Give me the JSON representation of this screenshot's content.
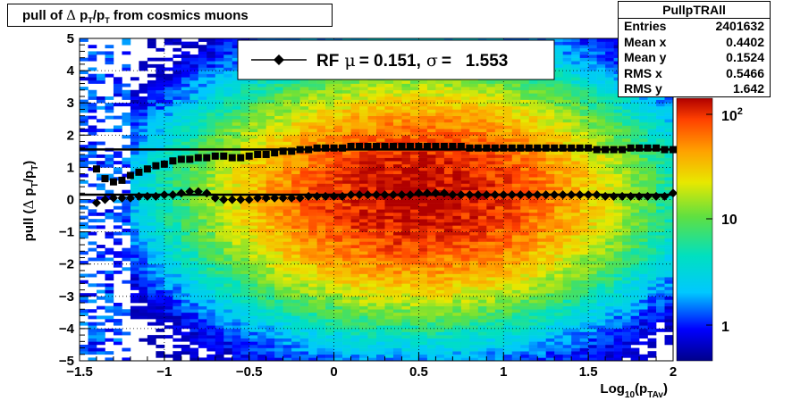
{
  "title": {
    "pre": "pull of ",
    "delta": "Δ",
    "p": " p",
    "sub1": "T",
    "slash": "/p",
    "sub2": "T",
    "post": " from cosmics muons"
  },
  "stats": {
    "title": "PullpTRAll",
    "rows": [
      {
        "label": "Entries",
        "value": "2401632"
      },
      {
        "label": "Mean x",
        "value": "0.4402"
      },
      {
        "label": "Mean y",
        "value": "0.1524"
      },
      {
        "label": "RMS x",
        "value": "0.5466"
      },
      {
        "label": "RMS y",
        "value": "1.642"
      }
    ]
  },
  "legend": {
    "series_label": "RF",
    "mu_symbol": "μ",
    "mu_value": "=  0.151,",
    "sigma_symbol": "σ",
    "sigma_value": "=   1.553"
  },
  "colorbar": {
    "scale": "log",
    "tick_labels": {
      "hundred_base": "10",
      "hundred_exp": "2",
      "ten": "10",
      "one": "1"
    }
  },
  "chart_data": {
    "type": "heatmap",
    "xlabel": {
      "pre": "Log",
      "sub": "10",
      "mid": "(p",
      "sub2": "TAv",
      "post": ")"
    },
    "ylabel": {
      "pre": "pull (",
      "delta": "Δ",
      "p": " p",
      "sub1": "T",
      "slash": "/p",
      "sub2": "T",
      "post": ")"
    },
    "xlim": [
      -1.5,
      2
    ],
    "ylim": [
      -5,
      5
    ],
    "grid": true,
    "legend_position": "top-center",
    "x_ticks": [
      "−1.5",
      "−1",
      "−0.5",
      "0",
      "0.5",
      "1",
      "1.5",
      "2"
    ],
    "x_tick_values": [
      -1.5,
      -1,
      -0.5,
      0,
      0.5,
      1,
      1.5,
      2
    ],
    "y_ticks": [
      "−5",
      "−4",
      "−3",
      "−2",
      "−1",
      "0",
      "1",
      "2",
      "3",
      "4",
      "5"
    ],
    "y_tick_values": [
      -5,
      -4,
      -3,
      -2,
      -1,
      0,
      1,
      2,
      3,
      4,
      5
    ],
    "heatmap": {
      "x_bins": 70,
      "y_bins": 100,
      "distribution": "gaussian-like",
      "peak_center": [
        0.5,
        0.15
      ],
      "peak_count_max": 300
    },
    "series": [
      {
        "marker": "diamond",
        "role": "mean",
        "fit_level": 0.151,
        "x": [
          -1.4,
          -1.35,
          -1.3,
          -1.25,
          -1.2,
          -1.15,
          -1.1,
          -1.05,
          -1.0,
          -0.95,
          -0.9,
          -0.85,
          -0.8,
          -0.75,
          -0.7,
          -0.65,
          -0.6,
          -0.55,
          -0.5,
          -0.45,
          -0.4,
          -0.35,
          -0.3,
          -0.25,
          -0.2,
          -0.15,
          -0.1,
          -0.05,
          0.0,
          0.05,
          0.1,
          0.15,
          0.2,
          0.25,
          0.3,
          0.35,
          0.4,
          0.45,
          0.5,
          0.55,
          0.6,
          0.65,
          0.7,
          0.75,
          0.8,
          0.85,
          0.9,
          0.95,
          1.0,
          1.05,
          1.1,
          1.15,
          1.2,
          1.25,
          1.3,
          1.35,
          1.4,
          1.45,
          1.5,
          1.55,
          1.6,
          1.65,
          1.7,
          1.75,
          1.8,
          1.85,
          1.9,
          1.95,
          2.0
        ],
        "y": [
          -0.1,
          0.0,
          0.05,
          0.05,
          0.05,
          0.1,
          0.1,
          0.1,
          0.15,
          0.15,
          0.2,
          0.25,
          0.25,
          0.2,
          0.05,
          0.0,
          0.0,
          0.0,
          0.0,
          0.05,
          0.05,
          0.05,
          0.05,
          0.05,
          0.05,
          0.1,
          0.1,
          0.1,
          0.1,
          0.1,
          0.15,
          0.15,
          0.15,
          0.15,
          0.15,
          0.15,
          0.15,
          0.15,
          0.2,
          0.2,
          0.2,
          0.2,
          0.15,
          0.15,
          0.15,
          0.15,
          0.15,
          0.15,
          0.15,
          0.15,
          0.15,
          0.15,
          0.15,
          0.15,
          0.15,
          0.15,
          0.15,
          0.15,
          0.15,
          0.15,
          0.1,
          0.1,
          0.1,
          0.1,
          0.1,
          0.1,
          0.1,
          0.1,
          0.2
        ]
      },
      {
        "marker": "square",
        "role": "rms",
        "fit_level": 1.553,
        "x": [
          -1.4,
          -1.35,
          -1.3,
          -1.25,
          -1.2,
          -1.15,
          -1.1,
          -1.05,
          -1.0,
          -0.95,
          -0.9,
          -0.85,
          -0.8,
          -0.75,
          -0.7,
          -0.65,
          -0.6,
          -0.55,
          -0.5,
          -0.45,
          -0.4,
          -0.35,
          -0.3,
          -0.25,
          -0.2,
          -0.15,
          -0.1,
          -0.05,
          0.0,
          0.05,
          0.1,
          0.15,
          0.2,
          0.25,
          0.3,
          0.35,
          0.4,
          0.45,
          0.5,
          0.55,
          0.6,
          0.65,
          0.7,
          0.75,
          0.8,
          0.85,
          0.9,
          0.95,
          1.0,
          1.05,
          1.1,
          1.15,
          1.2,
          1.25,
          1.3,
          1.35,
          1.4,
          1.45,
          1.5,
          1.55,
          1.6,
          1.65,
          1.7,
          1.75,
          1.8,
          1.85,
          1.9,
          1.95,
          2.0
        ],
        "y": [
          0.95,
          0.65,
          0.55,
          0.6,
          0.75,
          0.85,
          0.95,
          1.05,
          1.1,
          1.2,
          1.25,
          1.25,
          1.3,
          1.3,
          1.35,
          1.35,
          1.3,
          1.3,
          1.35,
          1.4,
          1.4,
          1.45,
          1.5,
          1.5,
          1.55,
          1.55,
          1.6,
          1.6,
          1.6,
          1.6,
          1.65,
          1.65,
          1.65,
          1.65,
          1.65,
          1.65,
          1.65,
          1.65,
          1.65,
          1.65,
          1.65,
          1.65,
          1.65,
          1.65,
          1.6,
          1.6,
          1.6,
          1.6,
          1.6,
          1.6,
          1.6,
          1.6,
          1.6,
          1.6,
          1.6,
          1.6,
          1.6,
          1.6,
          1.6,
          1.55,
          1.55,
          1.55,
          1.55,
          1.6,
          1.6,
          1.6,
          1.6,
          1.55,
          1.55
        ]
      }
    ]
  }
}
